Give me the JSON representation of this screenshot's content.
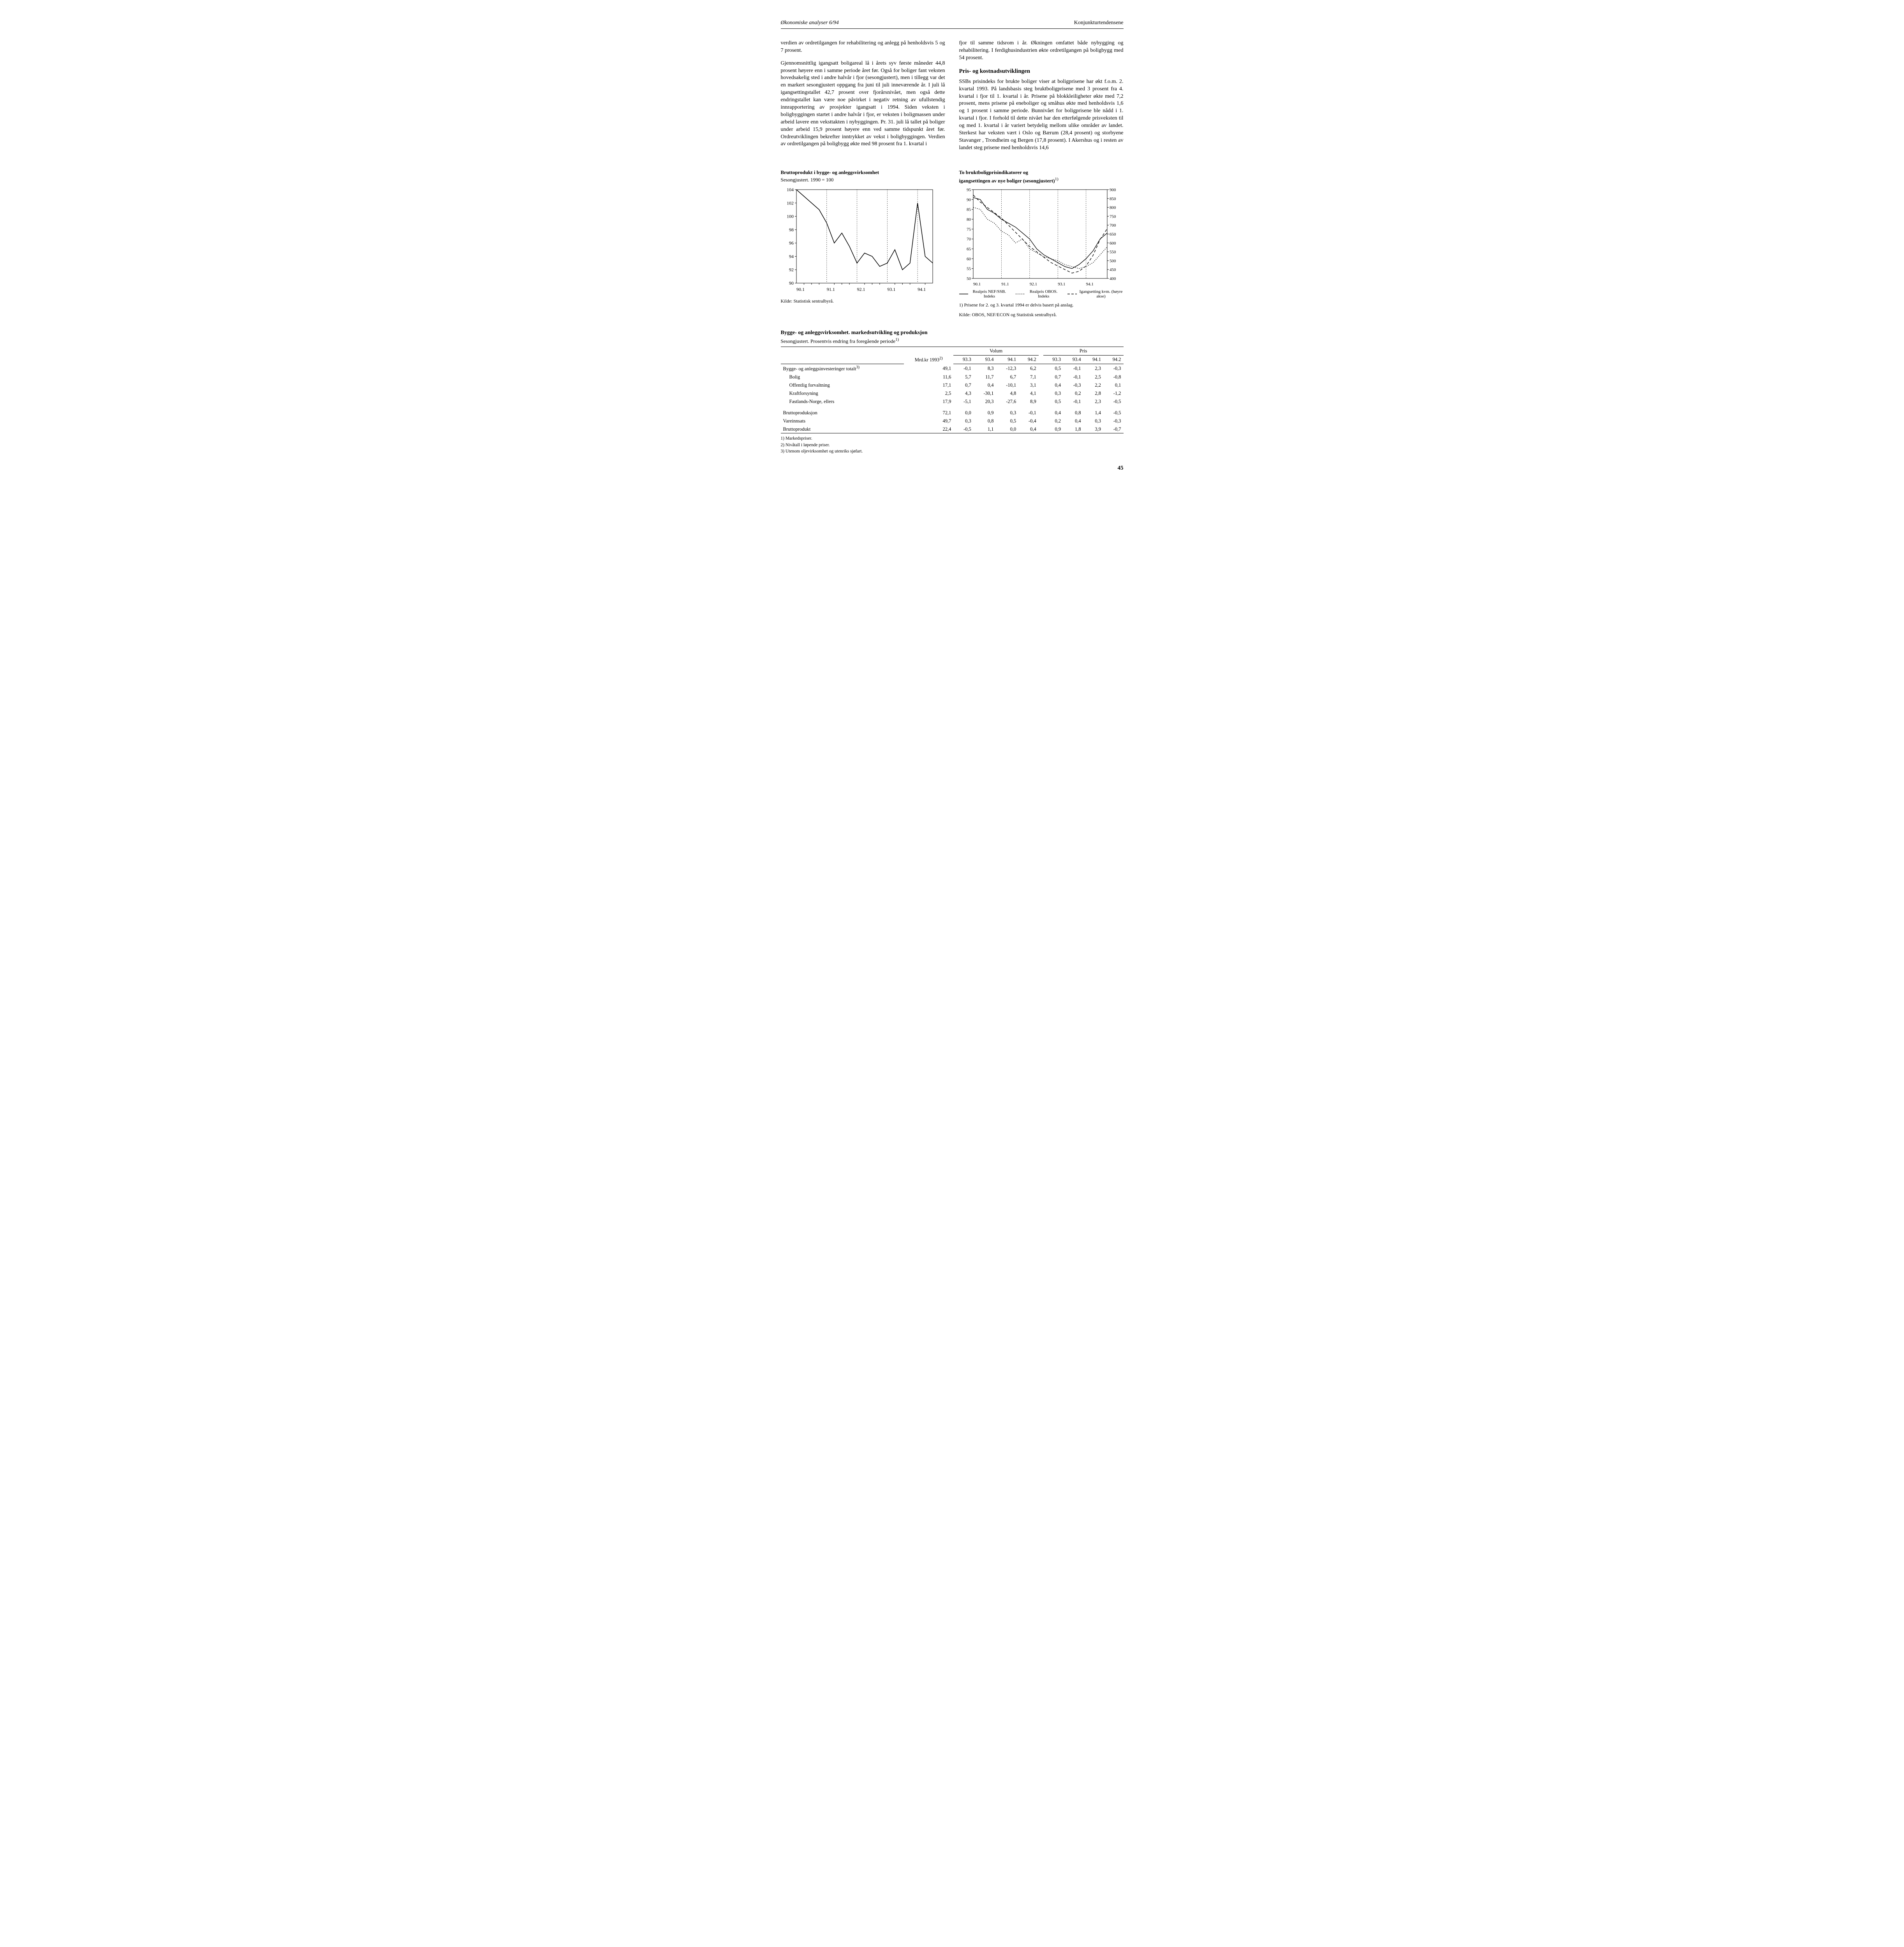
{
  "header": {
    "left": "Økonomiske analyser 6/94",
    "right": "Konjunkturtendensene"
  },
  "body": {
    "left_p1": "verdien av ordretilgangen for rehabilitering og anlegg på henholdsvis 5 og 7 prosent.",
    "left_p2": "Gjennomsnittlig igangsatt boligareal lå i årets syv første måneder 44,8 prosent høyere enn i samme periode året før. Også for boliger fant veksten hovedsakelig sted i andre halvår i fjor (sesongjustert), men i tillegg var det en markert sesongjustert oppgang fra juni til juli inneværende år. I juli lå igangsettingstallet 42,7 prosent over fjorårsnivået, men også dette endringstallet kan være noe påvirket i negativ retning av ufullstendig innrapportering av prosjekter igangsatt i 1994. Siden veksten i boligbyggingen startet i andre halvår i fjor, er veksten i boligmassen under arbeid lavere enn veksttakten i nybyggingen. Pr. 31. juli lå tallet på boliger under arbeid 15,9 prosent høyere enn ved samme tidspunkt året før. Ordreutviklingen bekrefter inntrykket av vekst i boligbyggingen. Verdien av ordretilgangen på boligbygg økte med 98 prosent fra 1. kvartal i",
    "right_p1": "fjor til samme tidsrom i år. Økningen omfattet både nybygging og rehabilitering. I ferdighusindustrien økte ordretilgangen på boligbygg med 54 prosent.",
    "right_head": "Pris- og kostnadsutviklingen",
    "right_p2": "SSBs prisindeks for brukte boliger viser at boligprisene har økt f.o.m. 2. kvartal 1993. På landsbasis steg bruktboligprisene med 3 prosent fra 4. kvartal i fjor til 1. kvartal i år. Prisene på blokkleiligheter økte med 7,2 prosent, mens prisene på eneboliger og småhus økte med henholdsvis 1,6 og 1 prosent i samme periode. Bunnivået for boligprisene ble nådd i 1. kvartal i fjor. I forhold til dette nivået har den etterfølgende prisveksten til og med 1. kvartal i år variert betydelig mellom ulike områder av landet. Sterkest har veksten vært i Oslo og Bærum (28,4 prosent) og storbyene Stavanger , Trondheim og Bergen (17,8 prosent). I Akershus og i resten av landet steg prisene med henholdsvis 14,6"
  },
  "chart1": {
    "title": "Bruttoprodukt i bygge- og anleggsvirksomhet",
    "subtitle": "Sesongjustert. 1990 = 100",
    "x_labels": [
      "90.1",
      "91.1",
      "92.1",
      "93.1",
      "94.1"
    ],
    "y_min": 90,
    "y_max": 104,
    "y_step": 2,
    "series": [
      104,
      103,
      102,
      101,
      99,
      96,
      97.5,
      95.5,
      93,
      94.5,
      94,
      92.5,
      93,
      95,
      92,
      93,
      102,
      94,
      93
    ],
    "line_color": "#000000",
    "grid_color": "#000000",
    "source": "Kilde: Statistisk sentralbyrå."
  },
  "chart2": {
    "title": "To bruktboligprisindikatorer og",
    "subtitle_bold": "igangsettingen av nye boliger (sesongjustert)",
    "sup": "1)",
    "x_labels": [
      "90.1",
      "91.1",
      "92.1",
      "93.1",
      "94.1"
    ],
    "y_left_min": 50,
    "y_left_max": 95,
    "y_left_step": 5,
    "y_right_min": 400,
    "y_right_max": 900,
    "y_right_step": 50,
    "series_solid": [
      91,
      90,
      85,
      83,
      80,
      78,
      76,
      73,
      70,
      65,
      62,
      60,
      58,
      56,
      55,
      57,
      60,
      64,
      70,
      73
    ],
    "series_dash1": [
      86,
      85,
      80,
      78,
      74,
      72,
      68,
      70,
      65,
      63,
      61,
      60,
      59,
      57,
      56,
      55,
      56,
      58,
      62,
      66
    ],
    "series_dash2": [
      870,
      830,
      800,
      770,
      740,
      700,
      660,
      620,
      580,
      550,
      520,
      490,
      470,
      450,
      430,
      440,
      470,
      530,
      620,
      680
    ],
    "line_color": "#000000",
    "legend": {
      "a": "Realpris NEF/SSB. Indeks",
      "b": "Realpris OBOS. Indeks",
      "c": "Igangsetting kvm. (høyre akse)"
    },
    "note": "1) Prisene for 2. og 3. kvartal 1994 er delvis basert på anslag.",
    "source": "Kilde: OBOS, NEF/ECON og Statistisk sentralbyrå."
  },
  "table": {
    "title": "Bygge- og anleggsvirksomhet. markedsutvikling og produksjon",
    "subtitle": "Sesongjustert. Prosentvis endring fra foregående periode",
    "sup": "1)",
    "col_mrd": "Mrd.kr 1993",
    "col_mrd_sup": "2)",
    "group_volum": "Volum",
    "group_pris": "Pris",
    "periods": [
      "93.3",
      "93.4",
      "94.1",
      "94.2",
      "93.3",
      "93.4",
      "94.1",
      "94.2"
    ],
    "rows": [
      {
        "label": "Bygge- og anleggsinvesteringer totalt",
        "sup": "3)",
        "indent": false,
        "mrd": "49,1",
        "v": [
          "-0,1",
          "8,3",
          "-12,3",
          "6,2",
          "0,5",
          "-0,1",
          "2,3",
          "-0,3"
        ]
      },
      {
        "label": "Bolig",
        "indent": true,
        "mrd": "11,6",
        "v": [
          "5,7",
          "11,7",
          "6,7",
          "7,1",
          "0,7",
          "-0,1",
          "2,5",
          "-0,8"
        ]
      },
      {
        "label": "Offentlig forvaltning",
        "indent": true,
        "mrd": "17,1",
        "v": [
          "0,7",
          "0,4",
          "-10,1",
          "3,1",
          "0,4",
          "-0,3",
          "2,2",
          "0,1"
        ]
      },
      {
        "label": "Kraftforsyning",
        "indent": true,
        "mrd": "2,5",
        "v": [
          "4,3",
          "-30,1",
          "4,8",
          "4,1",
          "0,3",
          "0,2",
          "2,8",
          "-1,2"
        ]
      },
      {
        "label": "Fastlands-Norge, ellers",
        "indent": true,
        "mrd": "17,9",
        "v": [
          "-5,1",
          "20,3",
          "-27,6",
          "8,9",
          "0,5",
          "-0,1",
          "2,3",
          "-0,5"
        ]
      }
    ],
    "rows2": [
      {
        "label": "Bruttoproduksjon",
        "mrd": "72,1",
        "v": [
          "0,0",
          "0,9",
          "0,3",
          "-0,1",
          "0,4",
          "0,8",
          "1,4",
          "-0,5"
        ]
      },
      {
        "label": "Vareinnsats",
        "mrd": "49,7",
        "v": [
          "0,3",
          "0,8",
          "0,5",
          "-0,4",
          "0,2",
          "0,4",
          "0,3",
          "-0,3"
        ]
      },
      {
        "label": "Bruttoprodukt",
        "mrd": "22,4",
        "v": [
          "-0,5",
          "1,1",
          "0,0",
          "0,4",
          "0,9",
          "1,8",
          "3,9",
          "-0,7"
        ]
      }
    ],
    "footnotes": [
      "1) Markedspriser.",
      "2) Nivåtall i løpende priser.",
      "3) Utenom oljevirksomhet og utenriks sjøfart."
    ]
  },
  "page": "45"
}
